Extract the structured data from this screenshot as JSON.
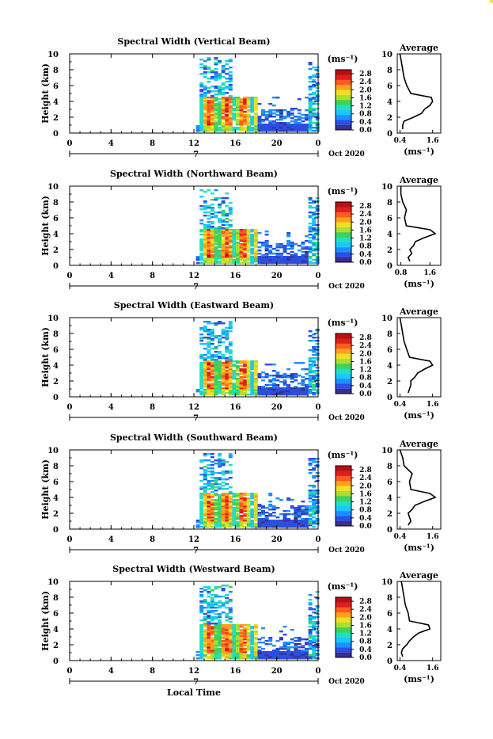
{
  "figure": {
    "x_axis_title": "Local Time",
    "colorbar_unit": "(ms⁻¹)",
    "colorbar_ticks": [
      "2.8",
      "2.4",
      "2.0",
      "1.6",
      "1.2",
      "0.8",
      "0.4",
      "0.0"
    ],
    "colorbar_ticks_cycle_map_note": "",
    "average_title": "Average",
    "average_unit": "(ms⁻¹)",
    "colors": {
      "background": "#ffffff",
      "axis": "#000000",
      "scale": [
        "#3a2f8e",
        "#2b4fe0",
        "#1f8fff",
        "#19c8ff",
        "#20e0c0",
        "#3fd060",
        "#a8e030",
        "#f0e020",
        "#ffa020",
        "#ff5a20",
        "#e01e1e",
        "#b81010"
      ]
    }
  },
  "chart_data": [
    {
      "type": "heatmap",
      "title": "Spectral Width (Vertical Beam)",
      "ylabel": "Height (km)",
      "x_ticks": [
        "0",
        "4",
        "8",
        "12",
        "16",
        "20",
        "0"
      ],
      "y_ticks": [
        "0",
        "2",
        "4",
        "6",
        "8",
        "10"
      ],
      "xlim": [
        0,
        24
      ],
      "ylim": [
        0,
        10
      ],
      "date_marker": "7",
      "date_label": "Oct 2020",
      "colorbar": {
        "label": "(ms⁻¹)",
        "ticks": [
          "2.8",
          "2.4",
          "2.0",
          "1.6",
          "1.2",
          "0.8",
          "0.4",
          "0.0"
        ],
        "range": [
          0.0,
          3.0
        ]
      },
      "data_start_hour": 12.2,
      "average_profile": {
        "title": "Average",
        "xlabel": "(ms⁻¹)",
        "x_ticks": [
          "0.4",
          "1.6"
        ],
        "y_ticks": [
          "0",
          "2",
          "4",
          "6",
          "8",
          "10"
        ],
        "xlim": [
          0.3,
          1.9
        ],
        "ylim": [
          0,
          10
        ],
        "heights": [
          0.5,
          1.0,
          1.5,
          2.0,
          2.5,
          3.0,
          3.5,
          4.0,
          4.5,
          5.0,
          6.0,
          7.0,
          8.0,
          9.0,
          10.0
        ],
        "values": [
          0.5,
          0.5,
          0.55,
          0.9,
          1.2,
          1.3,
          1.5,
          1.6,
          1.55,
          0.8,
          0.65,
          0.55,
          0.5,
          0.45,
          0.4
        ]
      }
    },
    {
      "type": "heatmap",
      "title": "Spectral Width (Northward Beam)",
      "ylabel": "Height (km)",
      "x_ticks": [
        "0",
        "4",
        "8",
        "12",
        "16",
        "20",
        "0"
      ],
      "y_ticks": [
        "0",
        "2",
        "4",
        "6",
        "8",
        "10"
      ],
      "xlim": [
        0,
        24
      ],
      "ylim": [
        0,
        10
      ],
      "date_marker": "7",
      "date_label": "Oct 2020",
      "colorbar": {
        "label": "(ms⁻¹)",
        "ticks": [
          "2.8",
          "2.4",
          "2.0",
          "1.6",
          "1.2",
          "0.8",
          "0.4",
          "0.0"
        ],
        "range": [
          0.0,
          3.0
        ]
      },
      "data_start_hour": 12.2,
      "average_profile": {
        "title": "Average",
        "xlabel": "(ms⁻¹)",
        "x_ticks": [
          "0.8",
          "1.6"
        ],
        "y_ticks": [
          "0",
          "2",
          "4",
          "6",
          "8",
          "10"
        ],
        "xlim": [
          0.7,
          1.9
        ],
        "ylim": [
          0,
          10
        ],
        "heights": [
          0.5,
          1.0,
          1.5,
          2.0,
          2.5,
          3.0,
          3.5,
          4.0,
          4.5,
          5.0,
          6.0,
          7.0,
          8.0,
          9.0,
          10.0
        ],
        "values": [
          1.05,
          1.0,
          1.1,
          1.05,
          1.15,
          1.2,
          1.45,
          1.75,
          1.6,
          0.95,
          0.9,
          0.95,
          0.85,
          0.8,
          0.8
        ]
      }
    },
    {
      "type": "heatmap",
      "title": "Spectral Width (Eastward Beam)",
      "ylabel": "Height (km)",
      "x_ticks": [
        "0",
        "4",
        "8",
        "12",
        "16",
        "20",
        "0"
      ],
      "y_ticks": [
        "0",
        "2",
        "4",
        "6",
        "8",
        "10"
      ],
      "xlim": [
        0,
        24
      ],
      "ylim": [
        0,
        10
      ],
      "date_marker": "7",
      "date_label": "Oct 2020",
      "colorbar": {
        "label": "(ms⁻¹)",
        "ticks": [
          "2.8",
          "2.4",
          "2.0",
          "1.6",
          "1.2",
          "0.8",
          "0.4",
          "0.0"
        ],
        "range": [
          0.0,
          3.0
        ]
      },
      "data_start_hour": 12.2,
      "average_profile": {
        "title": "Average",
        "xlabel": "(ms⁻¹)",
        "x_ticks": [
          "0.4",
          "1.6"
        ],
        "y_ticks": [
          "0",
          "2",
          "4",
          "6",
          "8",
          "10"
        ],
        "xlim": [
          0.3,
          1.9
        ],
        "ylim": [
          0,
          10
        ],
        "heights": [
          0.5,
          1.0,
          1.5,
          2.0,
          2.5,
          3.0,
          3.5,
          4.0,
          4.5,
          5.0,
          6.0,
          7.0,
          8.0,
          9.0,
          10.0
        ],
        "values": [
          0.7,
          0.75,
          0.8,
          0.8,
          0.95,
          1.05,
          1.3,
          1.6,
          1.5,
          0.75,
          0.65,
          0.55,
          0.5,
          0.45,
          0.4
        ]
      }
    },
    {
      "type": "heatmap",
      "title": "Spectral Width (Southward Beam)",
      "ylabel": "Height (km)",
      "x_ticks": [
        "0",
        "4",
        "8",
        "12",
        "16",
        "20",
        "0"
      ],
      "y_ticks": [
        "0",
        "2",
        "4",
        "6",
        "8",
        "10"
      ],
      "xlim": [
        0,
        24
      ],
      "ylim": [
        0,
        10
      ],
      "date_marker": "7",
      "date_label": "Oct 2020",
      "colorbar": {
        "label": "(ms⁻¹)",
        "ticks": [
          "2.8",
          "2.4",
          "2.0",
          "1.6",
          "1.2",
          "0.8",
          "0.4",
          "0.0"
        ],
        "range": [
          0.0,
          3.0
        ]
      },
      "data_start_hour": 12.2,
      "average_profile": {
        "title": "Average",
        "xlabel": "(ms⁻¹)",
        "x_ticks": [
          "0.4",
          "1.6"
        ],
        "y_ticks": [
          "0",
          "2",
          "4",
          "6",
          "8",
          "10"
        ],
        "xlim": [
          0.3,
          1.9
        ],
        "ylim": [
          0,
          10
        ],
        "heights": [
          0.5,
          1.0,
          1.5,
          2.0,
          2.5,
          3.0,
          3.5,
          4.0,
          4.5,
          5.0,
          6.0,
          7.0,
          8.0,
          9.0,
          10.0
        ],
        "values": [
          0.7,
          0.8,
          0.75,
          0.7,
          0.85,
          0.95,
          1.3,
          1.7,
          1.5,
          0.8,
          0.75,
          0.85,
          0.55,
          0.5,
          0.4
        ]
      }
    },
    {
      "type": "heatmap",
      "title": "Spectral Width (Westward Beam)",
      "ylabel": "Height (km)",
      "x_ticks": [
        "0",
        "4",
        "8",
        "12",
        "16",
        "20",
        "0"
      ],
      "y_ticks": [
        "0",
        "2",
        "4",
        "6",
        "8",
        "10"
      ],
      "xlim": [
        0,
        24
      ],
      "ylim": [
        0,
        10
      ],
      "date_marker": "7",
      "date_label": "Oct 2020",
      "colorbar": {
        "label": "(ms⁻¹)",
        "ticks": [
          "2.8",
          "2.4",
          "2.0",
          "1.6",
          "1.2",
          "0.8",
          "0.4",
          "0.0"
        ],
        "range": [
          0.0,
          3.0
        ]
      },
      "data_start_hour": 12.2,
      "average_profile": {
        "title": "Average",
        "xlabel": "(ms⁻¹)",
        "x_ticks": [
          "0.4",
          "1.6"
        ],
        "y_ticks": [
          "0",
          "2",
          "4",
          "6",
          "8",
          "10"
        ],
        "xlim": [
          0.3,
          1.9
        ],
        "ylim": [
          0,
          10
        ],
        "heights": [
          0.5,
          1.0,
          1.5,
          2.0,
          2.5,
          3.0,
          3.5,
          4.0,
          4.5,
          5.0,
          6.0,
          7.0,
          8.0,
          9.0,
          10.0
        ],
        "values": [
          0.5,
          0.45,
          0.5,
          0.65,
          0.75,
          0.9,
          1.1,
          1.5,
          1.45,
          0.75,
          0.7,
          0.6,
          0.55,
          0.5,
          0.45
        ]
      }
    }
  ]
}
